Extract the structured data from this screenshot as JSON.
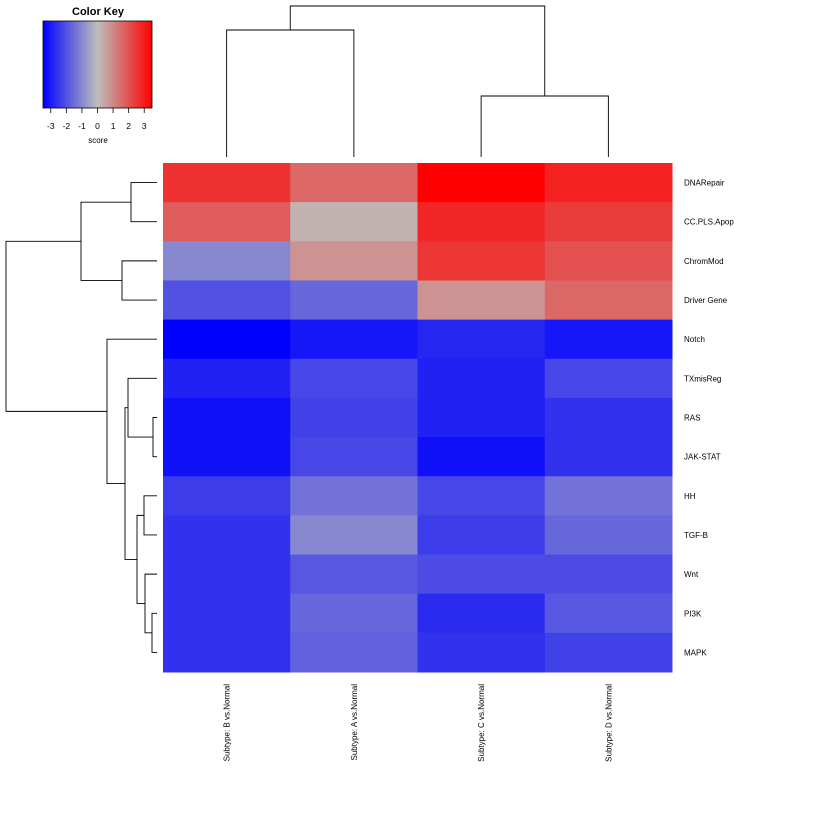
{
  "chart_data": {
    "type": "heatmap",
    "title": "",
    "columns": [
      "Subtype: B vs.Normal",
      "Subtype: A vs.Normal",
      "Subtype: C vs.Normal",
      "Subtype: D vs.Normal"
    ],
    "rows": [
      "DNARepair",
      "CC.PLS.Apop",
      "ChromMod",
      "Driver Gene",
      "Notch",
      "TXmisReg",
      "RAS",
      "JAK-STAT",
      "HH",
      "TGF-B",
      "Wnt",
      "PI3K",
      "MAPK"
    ],
    "values": [
      [
        2.6,
        1.6,
        3.5,
        2.9
      ],
      [
        1.8,
        0.2,
        2.8,
        2.4
      ],
      [
        -1.0,
        0.8,
        2.5,
        2.0
      ],
      [
        -2.0,
        -1.6,
        0.8,
        1.6
      ],
      [
        -3.5,
        -3.1,
        -2.8,
        -3.1
      ],
      [
        -2.9,
        -2.2,
        -2.9,
        -2.2
      ],
      [
        -3.2,
        -2.3,
        -2.9,
        -2.6
      ],
      [
        -3.2,
        -2.2,
        -3.2,
        -2.6
      ],
      [
        -2.4,
        -1.4,
        -2.2,
        -1.4
      ],
      [
        -2.6,
        -1.0,
        -2.4,
        -1.6
      ],
      [
        -2.6,
        -1.9,
        -2.1,
        -2.1
      ],
      [
        -2.6,
        -1.6,
        -2.7,
        -1.9
      ],
      [
        -2.6,
        -1.7,
        -2.6,
        -2.3
      ]
    ],
    "color_scale": {
      "min": -3.5,
      "max": 3.5,
      "low_color": "#0000ff",
      "mid_color": "#bebebe",
      "high_color": "#ff0000"
    },
    "color_key": {
      "title": "Color Key",
      "xlabel": "score",
      "ticks": [
        "-3",
        "-2",
        "-1",
        "0",
        "1",
        "2",
        "3"
      ]
    },
    "column_dendrogram": [
      "(B,A)",
      "(C,D)",
      "((B,A),(C,D))"
    ],
    "row_dendrogram": [
      "(DNARepair,CC.PLS.Apop)",
      "(ChromMod,Driver Gene)",
      "(RAS,JAK-STAT)",
      "(TXmisReg,(RAS,JAK-STAT))",
      "(HH,TGF-B)",
      "(PI3K,MAPK)",
      "(Wnt,(PI3K,MAPK))",
      "((HH,TGF-B),(Wnt,(PI3K,MAPK)))",
      "((TXmisReg,(RAS,JAK-STAT)),((HH,TGF-B),(Wnt,(PI3K,MAPK))))",
      "(Notch,(...))",
      "((DNARepair,CC.PLS.Apop),(ChromMod,Driver Gene))",
      "root"
    ]
  }
}
